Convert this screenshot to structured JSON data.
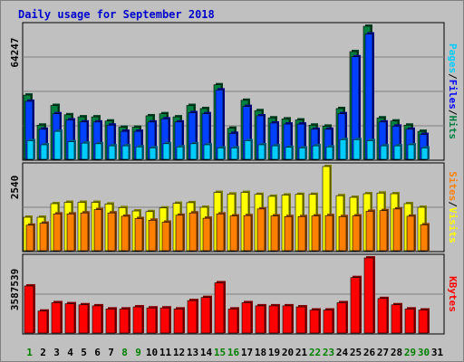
{
  "chart_data": [
    {
      "type": "bar",
      "title": "Daily usage for September 2018",
      "ymax_label": "64247",
      "legend": [
        {
          "name": "Pages",
          "color": "#00ccff"
        },
        {
          "name": "Files",
          "color": "#0000ff"
        },
        {
          "name": "Hits",
          "color": "#008040"
        }
      ],
      "legend_sep": "/",
      "ymax": 64247,
      "categories": [
        "1",
        "2",
        "3",
        "4",
        "5",
        "6",
        "7",
        "8",
        "9",
        "10",
        "11",
        "12",
        "13",
        "14",
        "15",
        "16",
        "17",
        "18",
        "19",
        "20",
        "21",
        "22",
        "23",
        "24",
        "25",
        "26",
        "27",
        "28",
        "29",
        "30",
        "31"
      ],
      "weekend_days": [
        "1",
        "8",
        "9",
        "15",
        "16",
        "22",
        "23",
        "29",
        "30"
      ],
      "series": [
        {
          "name": "Hits",
          "values": [
            31000,
            16500,
            26000,
            21500,
            20500,
            20500,
            18500,
            15500,
            15500,
            21000,
            22000,
            20500,
            26000,
            24500,
            36000,
            15000,
            28500,
            23500,
            20000,
            19500,
            19000,
            16500,
            16000,
            24500,
            52000,
            64247,
            20000,
            18500,
            16500,
            13500,
            0
          ]
        },
        {
          "name": "Files",
          "values": [
            28000,
            14500,
            22000,
            19000,
            18000,
            18000,
            16500,
            13500,
            13500,
            18000,
            19500,
            18000,
            22500,
            22000,
            33500,
            12500,
            25500,
            21000,
            17500,
            17000,
            17000,
            14500,
            14500,
            22000,
            49500,
            60500,
            18000,
            16000,
            14500,
            12000,
            0
          ]
        },
        {
          "name": "Pages",
          "values": [
            9000,
            7000,
            13500,
            8500,
            7800,
            7500,
            6500,
            6500,
            6000,
            5500,
            7500,
            6000,
            7500,
            7000,
            5500,
            5500,
            9000,
            7000,
            6500,
            5800,
            5500,
            6500,
            6000,
            9500,
            9500,
            9000,
            6500,
            6500,
            7000,
            5500,
            0
          ]
        }
      ]
    },
    {
      "type": "bar",
      "ymax_label": "2540",
      "legend": [
        {
          "name": "Sites",
          "color": "#ff8000"
        },
        {
          "name": "Visits",
          "color": "#ffff00"
        }
      ],
      "legend_sep": "/",
      "ymax": 2540,
      "series": [
        {
          "name": "Visits",
          "values": [
            1010,
            1010,
            1420,
            1460,
            1460,
            1460,
            1410,
            1300,
            1200,
            1180,
            1290,
            1430,
            1450,
            1310,
            1760,
            1710,
            1760,
            1700,
            1640,
            1680,
            1700,
            1700,
            2540,
            1660,
            1610,
            1720,
            1740,
            1720,
            1420,
            1310,
            0
          ]
        },
        {
          "name": "Sites",
          "values": [
            770,
            830,
            1110,
            1110,
            1140,
            1240,
            1140,
            1040,
            970,
            920,
            860,
            1070,
            1140,
            980,
            1110,
            1050,
            1060,
            1260,
            1050,
            1030,
            1030,
            1050,
            1060,
            1030,
            1050,
            1190,
            1210,
            1260,
            1040,
            780,
            0
          ]
        }
      ]
    },
    {
      "type": "bar",
      "ymax_label": "3587539",
      "legend": [
        {
          "name": "KBytes",
          "color": "#ff0000"
        }
      ],
      "legend_sep": "/",
      "ymax": 3587539,
      "series": [
        {
          "name": "KBytes",
          "values": [
            2250000,
            1050000,
            1450000,
            1400000,
            1350000,
            1300000,
            1150000,
            1150000,
            1250000,
            1200000,
            1200000,
            1150000,
            1550000,
            1700000,
            2400000,
            1150000,
            1450000,
            1300000,
            1300000,
            1300000,
            1250000,
            1100000,
            1100000,
            1450000,
            2650000,
            3587539,
            1650000,
            1350000,
            1150000,
            1100000,
            0
          ]
        }
      ]
    }
  ]
}
